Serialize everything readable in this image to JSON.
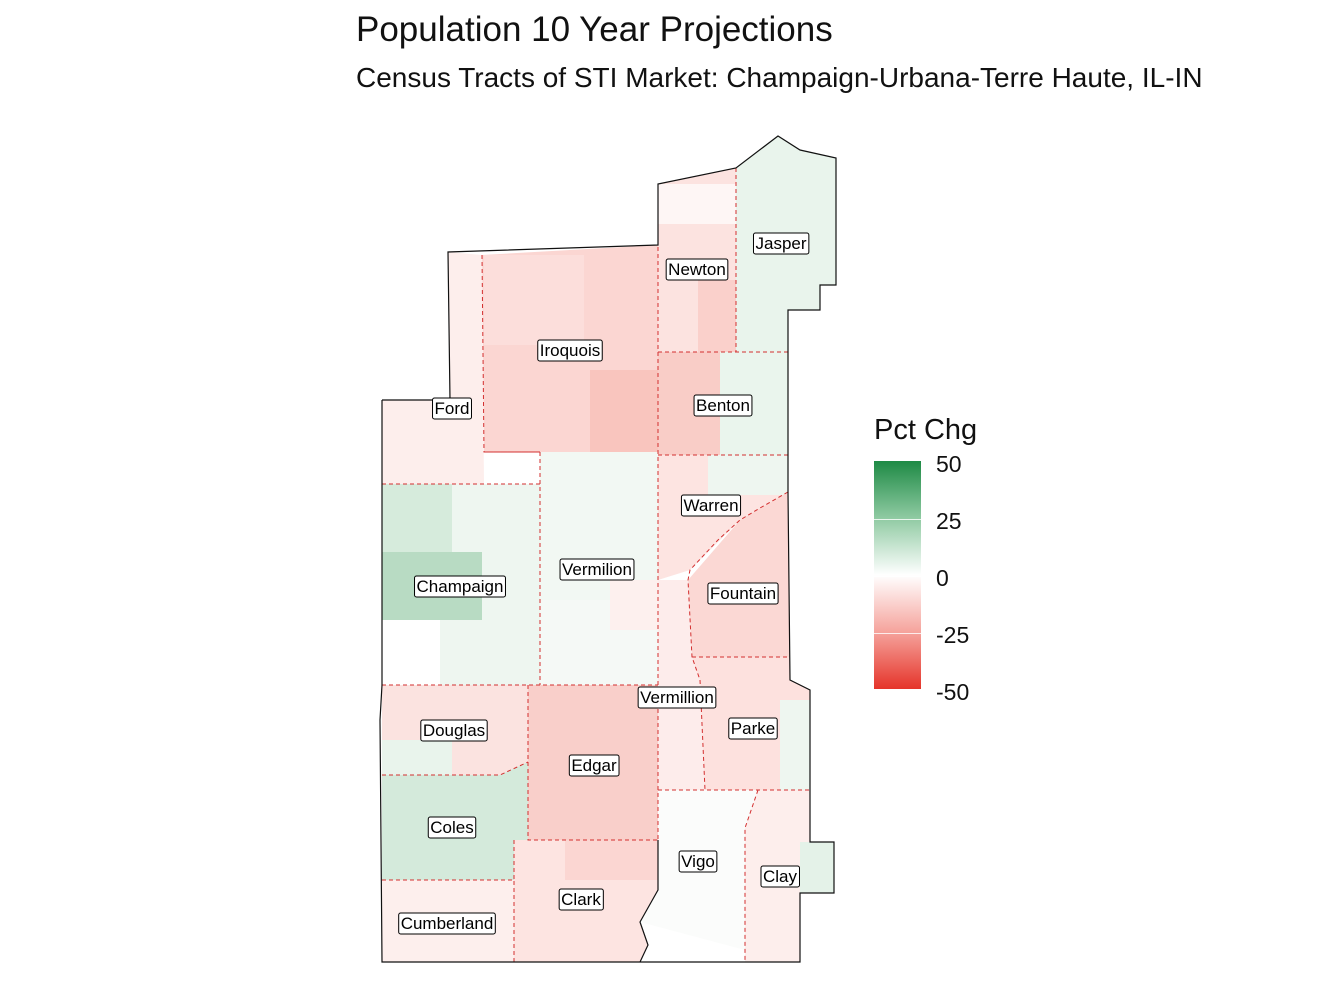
{
  "title": "Population 10 Year Projections",
  "subtitle": "Census Tracts of STI Market: Champaign-Urbana-Terre Haute, IL-IN",
  "legend": {
    "title": "Pct Chg",
    "ticks": [
      "50",
      "25",
      "0",
      "-25",
      "-50"
    ],
    "range": [
      -50,
      50
    ],
    "colors": {
      "high": "#1e8a45",
      "mid": "#ffffff",
      "low": "#e5342a"
    }
  },
  "counties": [
    {
      "name": "Jasper"
    },
    {
      "name": "Newton"
    },
    {
      "name": "Iroquois"
    },
    {
      "name": "Benton"
    },
    {
      "name": "Ford"
    },
    {
      "name": "Warren"
    },
    {
      "name": "Vermilion"
    },
    {
      "name": "Champaign"
    },
    {
      "name": "Fountain"
    },
    {
      "name": "Vermillion"
    },
    {
      "name": "Douglas"
    },
    {
      "name": "Parke"
    },
    {
      "name": "Edgar"
    },
    {
      "name": "Coles"
    },
    {
      "name": "Vigo"
    },
    {
      "name": "Clay"
    },
    {
      "name": "Clark"
    },
    {
      "name": "Cumberland"
    }
  ]
}
